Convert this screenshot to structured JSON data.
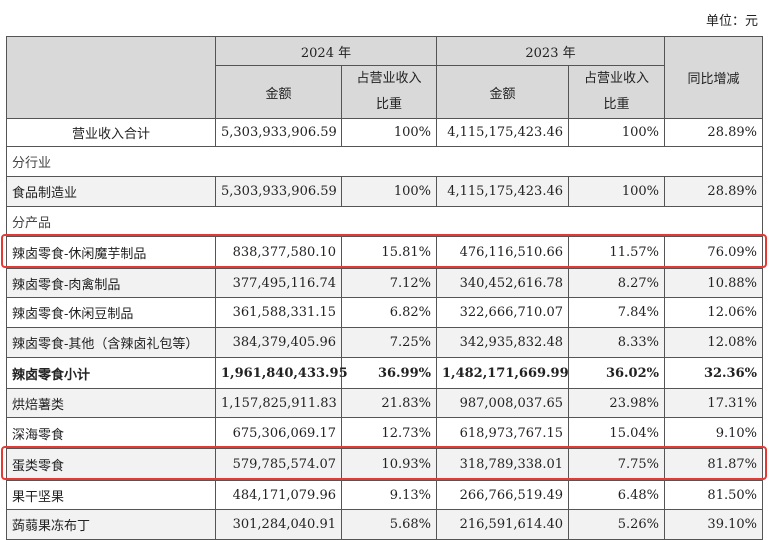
{
  "unit_label": "单位：元",
  "header": {
    "year_2024": "2024 年",
    "year_2023": "2023 年",
    "amount": "金额",
    "share_line1": "占营业收入",
    "share_line2": "比重",
    "yoy": "同比增减"
  },
  "total": {
    "name": "营业收入合计",
    "a2024": "5,303,933,906.59",
    "s2024": "100%",
    "a2023": "4,115,175,423.46",
    "s2023": "100%",
    "yoy": "28.89%"
  },
  "section_industry": "分行业",
  "industry": {
    "name": "食品制造业",
    "a2024": "5,303,933,906.59",
    "s2024": "100%",
    "a2023": "4,115,175,423.46",
    "s2023": "100%",
    "yoy": "28.89%"
  },
  "section_product": "分产品",
  "products": [
    {
      "name": "辣卤零食-休闲魔芋制品",
      "a2024": "838,377,580.10",
      "s2024": "15.81%",
      "a2023": "476,116,510.66",
      "s2023": "11.57%",
      "yoy": "76.09%"
    },
    {
      "name": "辣卤零食-肉禽制品",
      "a2024": "377,495,116.74",
      "s2024": "7.12%",
      "a2023": "340,452,616.78",
      "s2023": "8.27%",
      "yoy": "10.88%"
    },
    {
      "name": "辣卤零食-休闲豆制品",
      "a2024": "361,588,331.15",
      "s2024": "6.82%",
      "a2023": "322,666,710.07",
      "s2023": "7.84%",
      "yoy": "12.06%"
    },
    {
      "name": "辣卤零食-其他（含辣卤礼包等）",
      "a2024": "384,379,405.96",
      "s2024": "7.25%",
      "a2023": "342,935,832.48",
      "s2023": "8.33%",
      "yoy": "12.08%"
    },
    {
      "name": "辣卤零食小计",
      "a2024": "1,961,840,433.95",
      "s2024": "36.99%",
      "a2023": "1,482,171,669.99",
      "s2023": "36.02%",
      "yoy": "32.36%"
    },
    {
      "name": "烘焙薯类",
      "a2024": "1,157,825,911.83",
      "s2024": "21.83%",
      "a2023": "987,008,037.65",
      "s2023": "23.98%",
      "yoy": "17.31%"
    },
    {
      "name": "深海零食",
      "a2024": "675,306,069.17",
      "s2024": "12.73%",
      "a2023": "618,973,767.15",
      "s2023": "15.04%",
      "yoy": "9.10%"
    },
    {
      "name": "蛋类零食",
      "a2024": "579,785,574.07",
      "s2024": "10.93%",
      "a2023": "318,789,338.01",
      "s2023": "7.75%",
      "yoy": "81.87%"
    },
    {
      "name": "果干坚果",
      "a2024": "484,171,079.96",
      "s2024": "9.13%",
      "a2023": "266,766,519.49",
      "s2023": "6.48%",
      "yoy": "81.50%"
    },
    {
      "name": "蒟蒻果冻布丁",
      "a2024": "301,284,040.91",
      "s2024": "5.68%",
      "a2023": "216,591,614.40",
      "s2023": "5.26%",
      "yoy": "39.10%"
    }
  ]
}
